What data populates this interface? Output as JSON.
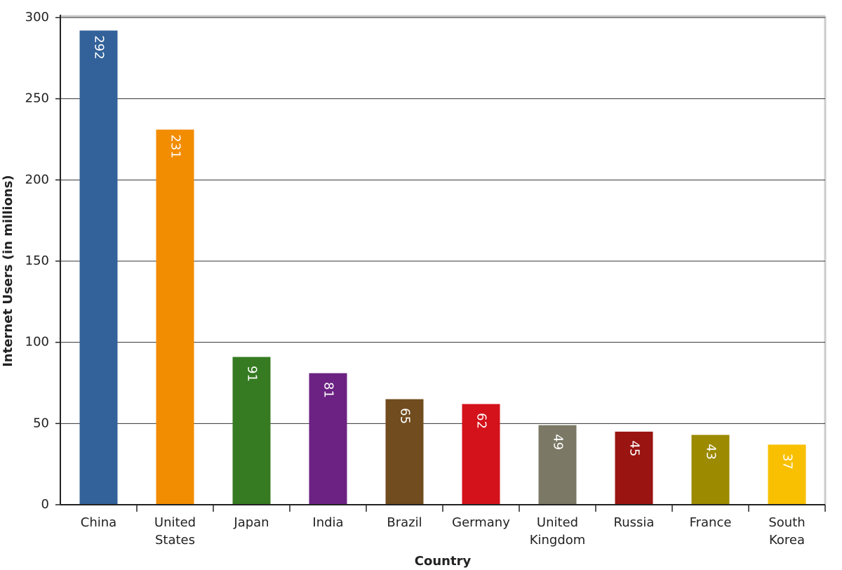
{
  "chart_data": {
    "type": "bar",
    "xlabel": "Country",
    "ylabel": "Internet Users (in millions)",
    "categories": [
      "China",
      "United States",
      "Japan",
      "India",
      "Brazil",
      "Germany",
      "United Kingdom",
      "Russia",
      "France",
      "South Korea"
    ],
    "values": [
      292,
      231,
      91,
      81,
      65,
      62,
      49,
      45,
      43,
      37
    ],
    "colors": [
      "#33629a",
      "#f28c00",
      "#367b22",
      "#6b2282",
      "#714c1e",
      "#d4121b",
      "#7b7966",
      "#9a1412",
      "#9c8a00",
      "#f8c000"
    ],
    "ylim": [
      0,
      300
    ],
    "yticks": [
      0,
      50,
      100,
      150,
      200,
      250,
      300
    ],
    "grid": true
  }
}
